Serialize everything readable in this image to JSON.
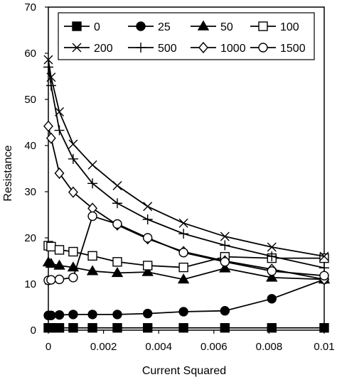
{
  "chart_data": {
    "type": "line",
    "xlabel": "Current Squared",
    "ylabel": "Resistance",
    "xlim": [
      0,
      0.01
    ],
    "ylim": [
      0,
      70
    ],
    "x_ticks": [
      "0",
      "0.002",
      "0.004",
      "0.006",
      "0.008",
      "0.01"
    ],
    "y_ticks": [
      "0",
      "10",
      "20",
      "30",
      "40",
      "50",
      "60",
      "70"
    ],
    "legend_position": "top, inside plot area (2 rows of 4)",
    "grid": false,
    "series": [
      {
        "name": "0",
        "marker": "square-filled",
        "x": [
          0,
          0.0001,
          0.0004,
          0.0009,
          0.0016,
          0.0025,
          0.0036,
          0.0049,
          0.0064,
          0.0081,
          0.01
        ],
        "y": [
          0.5,
          0.5,
          0.5,
          0.5,
          0.5,
          0.5,
          0.5,
          0.5,
          0.5,
          0.5,
          0.5
        ]
      },
      {
        "name": "25",
        "marker": "circle-filled",
        "x": [
          0,
          0.0001,
          0.0004,
          0.0009,
          0.0016,
          0.0025,
          0.0036,
          0.0049,
          0.0064,
          0.0081,
          0.01
        ],
        "y": [
          3.2,
          3.2,
          3.3,
          3.4,
          3.4,
          3.4,
          3.6,
          4.0,
          4.2,
          6.8,
          11.0
        ]
      },
      {
        "name": "50",
        "marker": "triangle-filled",
        "x": [
          0,
          0.0001,
          0.0004,
          0.0009,
          0.0016,
          0.0025,
          0.0036,
          0.0049,
          0.0064,
          0.0081,
          0.01
        ],
        "y": [
          14.7,
          14.4,
          14.0,
          13.6,
          12.8,
          12.4,
          12.6,
          11.0,
          13.4,
          11.4,
          11.0
        ]
      },
      {
        "name": "100",
        "marker": "square-open",
        "x": [
          0,
          0.0001,
          0.0004,
          0.0009,
          0.0016,
          0.0025,
          0.0036,
          0.0049,
          0.0064,
          0.0081,
          0.01
        ],
        "y": [
          18.3,
          18.1,
          17.4,
          17.0,
          16.1,
          14.8,
          14.0,
          13.6,
          15.9,
          15.6,
          15.6
        ]
      },
      {
        "name": "200",
        "marker": "x",
        "x": [
          0,
          0.0001,
          0.0004,
          0.0009,
          0.0016,
          0.0025,
          0.0036,
          0.0049,
          0.0064,
          0.0081,
          0.01
        ],
        "y": [
          58.6,
          54.8,
          47.3,
          40.3,
          35.8,
          31.3,
          26.8,
          23.2,
          20.3,
          18.0,
          16.0
        ]
      },
      {
        "name": "500",
        "marker": "plus",
        "x": [
          0,
          0.0001,
          0.0004,
          0.0009,
          0.0016,
          0.0025,
          0.0036,
          0.0049,
          0.0064,
          0.0081,
          0.01
        ],
        "y": [
          57.0,
          53.0,
          43.3,
          37.1,
          31.8,
          27.5,
          24.0,
          20.9,
          18.4,
          16.0,
          13.5
        ]
      },
      {
        "name": "1000",
        "marker": "diamond-open",
        "x": [
          0,
          0.0001,
          0.0004,
          0.0009,
          0.0016,
          0.0025,
          0.0036,
          0.0049,
          0.0064,
          0.0081,
          0.01
        ],
        "y": [
          44.2,
          41.6,
          34.0,
          29.9,
          26.4,
          22.8,
          19.8,
          17.0,
          15.0,
          13.2,
          11.0
        ]
      },
      {
        "name": "1500",
        "marker": "circle-open",
        "x": [
          0,
          0.0001,
          0.0004,
          0.0009,
          0.0016,
          0.0025,
          0.0036,
          0.0049,
          0.0064,
          0.0081,
          0.01
        ],
        "y": [
          10.8,
          10.9,
          11.0,
          11.4,
          24.7,
          23.0,
          20.0,
          16.8,
          14.8,
          12.8,
          11.8
        ]
      }
    ]
  }
}
